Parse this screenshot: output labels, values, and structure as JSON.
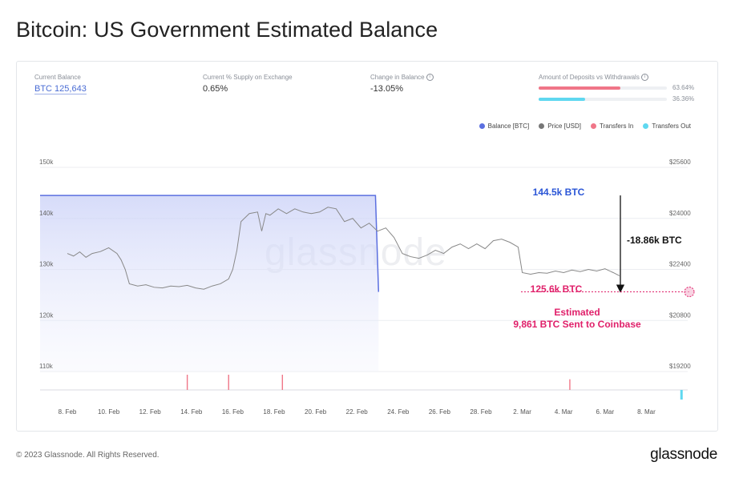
{
  "title": "Bitcoin: US Government Estimated Balance",
  "stats": {
    "current_balance_label": "Current Balance",
    "current_balance_value": "BTC 125,643",
    "supply_label": "Current % Supply on Exchange",
    "supply_value": "0.65%",
    "change_label": "Change in Balance",
    "change_value": "-13.05%",
    "deposits_label": "Amount of Deposits vs Withdrawals",
    "deposits_pct": "63.64%",
    "withdrawals_pct": "36.36%",
    "deposits_fraction": 0.6364,
    "withdrawals_fraction": 0.3636,
    "deposits_color": "#f07688",
    "withdrawals_color": "#5fd8f0"
  },
  "legend": [
    {
      "label": "Balance [BTC]",
      "color": "#5b6fe0"
    },
    {
      "label": "Price [USD]",
      "color": "#777777"
    },
    {
      "label": "Transfers In",
      "color": "#f07688"
    },
    {
      "label": "Transfers Out",
      "color": "#5fd8f0"
    }
  ],
  "watermark": "glassnode",
  "annotations": {
    "balance_high": "144.5k BTC",
    "balance_now": "125.6k BTC",
    "change": "-18.86k BTC",
    "estimated_line1": "Estimated",
    "estimated_line2": "9,861 BTC Sent to Coinbase"
  },
  "footer": {
    "copyright": "© 2023 Glassnode. All Rights Reserved.",
    "brand": "glassnode"
  },
  "chart_data": {
    "type": "line",
    "left_axis_ticks": [
      "150k",
      "140k",
      "130k",
      "120k",
      "110k"
    ],
    "left_axis_range": [
      110000,
      150000
    ],
    "right_axis_ticks": [
      "$25600",
      "$24000",
      "$22400",
      "$20800",
      "$19200"
    ],
    "right_axis_range": [
      19200,
      25600
    ],
    "x_ticks": [
      "8. Feb",
      "10. Feb",
      "12. Feb",
      "14. Feb",
      "16. Feb",
      "18. Feb",
      "20. Feb",
      "22. Feb",
      "24. Feb",
      "26. Feb",
      "28. Feb",
      "2. Mar",
      "4. Mar",
      "6. Mar",
      "8. Mar"
    ],
    "series": [
      {
        "name": "Balance [BTC]",
        "axis": "left",
        "points": [
          [
            0,
            144500
          ],
          [
            14.9,
            144500
          ],
          [
            15.05,
            125600
          ]
        ]
      },
      {
        "name": "Price [USD]",
        "axis": "right",
        "points": [
          [
            0,
            22900
          ],
          [
            0.3,
            22820
          ],
          [
            0.6,
            22950
          ],
          [
            0.9,
            22780
          ],
          [
            1.2,
            22900
          ],
          [
            1.6,
            22960
          ],
          [
            2.0,
            23080
          ],
          [
            2.4,
            22900
          ],
          [
            2.6,
            22700
          ],
          [
            2.8,
            22400
          ],
          [
            3.0,
            21950
          ],
          [
            3.4,
            21880
          ],
          [
            3.8,
            21920
          ],
          [
            4.2,
            21840
          ],
          [
            4.6,
            21820
          ],
          [
            5.0,
            21880
          ],
          [
            5.4,
            21860
          ],
          [
            5.8,
            21900
          ],
          [
            6.2,
            21820
          ],
          [
            6.6,
            21780
          ],
          [
            7.0,
            21880
          ],
          [
            7.4,
            21950
          ],
          [
            7.8,
            22100
          ],
          [
            8.0,
            22400
          ],
          [
            8.2,
            23000
          ],
          [
            8.4,
            23900
          ],
          [
            8.8,
            24150
          ],
          [
            9.2,
            24200
          ],
          [
            9.4,
            23600
          ],
          [
            9.6,
            24150
          ],
          [
            9.8,
            24100
          ],
          [
            10.2,
            24300
          ],
          [
            10.6,
            24150
          ],
          [
            11.0,
            24300
          ],
          [
            11.4,
            24200
          ],
          [
            11.8,
            24150
          ],
          [
            12.2,
            24200
          ],
          [
            12.6,
            24350
          ],
          [
            13.0,
            24300
          ],
          [
            13.4,
            23900
          ],
          [
            13.8,
            24000
          ],
          [
            14.2,
            23700
          ],
          [
            14.6,
            23850
          ],
          [
            15.0,
            23600
          ],
          [
            15.4,
            23700
          ],
          [
            15.8,
            23400
          ],
          [
            16.2,
            22900
          ],
          [
            16.6,
            22800
          ],
          [
            17.0,
            22750
          ],
          [
            17.4,
            22850
          ],
          [
            17.8,
            23000
          ],
          [
            18.2,
            22900
          ],
          [
            18.6,
            23100
          ],
          [
            19.0,
            23200
          ],
          [
            19.4,
            23050
          ],
          [
            19.8,
            23200
          ],
          [
            20.2,
            23050
          ],
          [
            20.6,
            23300
          ],
          [
            21.0,
            23350
          ],
          [
            21.4,
            23250
          ],
          [
            21.8,
            23100
          ],
          [
            22.0,
            22300
          ],
          [
            22.4,
            22250
          ],
          [
            22.8,
            22300
          ],
          [
            23.2,
            22280
          ],
          [
            23.6,
            22350
          ],
          [
            24.0,
            22300
          ],
          [
            24.4,
            22380
          ],
          [
            24.8,
            22330
          ],
          [
            25.2,
            22400
          ],
          [
            25.6,
            22350
          ],
          [
            26.0,
            22420
          ],
          [
            26.4,
            22300
          ],
          [
            26.7,
            22200
          ]
        ]
      },
      {
        "name": "Transfers In",
        "axis": "bottom",
        "bars": [
          [
            5.8,
            1.0
          ],
          [
            7.8,
            1.0
          ],
          [
            10.4,
            1.0
          ],
          [
            24.3,
            0.7
          ]
        ]
      },
      {
        "name": "Transfers Out",
        "axis": "bottom",
        "bars": [
          [
            29.7,
            1.0
          ]
        ]
      }
    ]
  }
}
